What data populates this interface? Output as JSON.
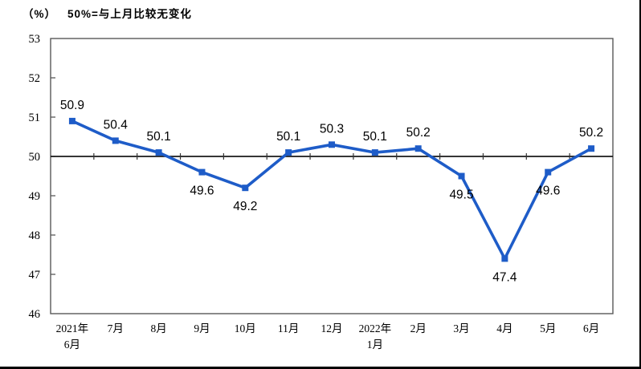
{
  "header": {
    "unit_label": "（%）",
    "subtitle": "50%=与上月比较无变化"
  },
  "chart_data": {
    "type": "line",
    "title": "50%=与上月比较无变化",
    "unit": "%",
    "categories": [
      "2021年6月",
      "7月",
      "8月",
      "9月",
      "10月",
      "11月",
      "12月",
      "2022年1月",
      "2月",
      "3月",
      "4月",
      "5月",
      "6月"
    ],
    "category_label_lines": [
      [
        "2021年",
        "6月"
      ],
      [
        "7月"
      ],
      [
        "8月"
      ],
      [
        "9月"
      ],
      [
        "10月"
      ],
      [
        "11月"
      ],
      [
        "12月"
      ],
      [
        "2022年",
        "1月"
      ],
      [
        "2月"
      ],
      [
        "3月"
      ],
      [
        "4月"
      ],
      [
        "5月"
      ],
      [
        "6月"
      ]
    ],
    "values": [
      50.9,
      50.4,
      50.1,
      49.6,
      49.2,
      50.1,
      50.3,
      50.1,
      50.2,
      49.5,
      47.4,
      49.6,
      50.2
    ],
    "data_labels": [
      "50.9",
      "50.4",
      "50.1",
      "49.6",
      "49.2",
      "50.1",
      "50.3",
      "50.1",
      "50.2",
      "49.5",
      "47.4",
      "49.6",
      "50.2"
    ],
    "data_label_position": [
      "above",
      "above",
      "above",
      "below",
      "below",
      "above",
      "above",
      "above",
      "above",
      "below",
      "below",
      "below",
      "above"
    ],
    "ylim": [
      46,
      53
    ],
    "yticks": [
      46,
      47,
      48,
      49,
      50,
      51,
      52,
      53
    ],
    "reference_line": 50,
    "grid": false,
    "legend": false,
    "line_color": "#1E5CC8",
    "marker": "square",
    "marker_color": "#1E5CC8",
    "axis_color": "#595959",
    "reference_line_color": "#1a1a1a",
    "label_color": "#000000"
  }
}
